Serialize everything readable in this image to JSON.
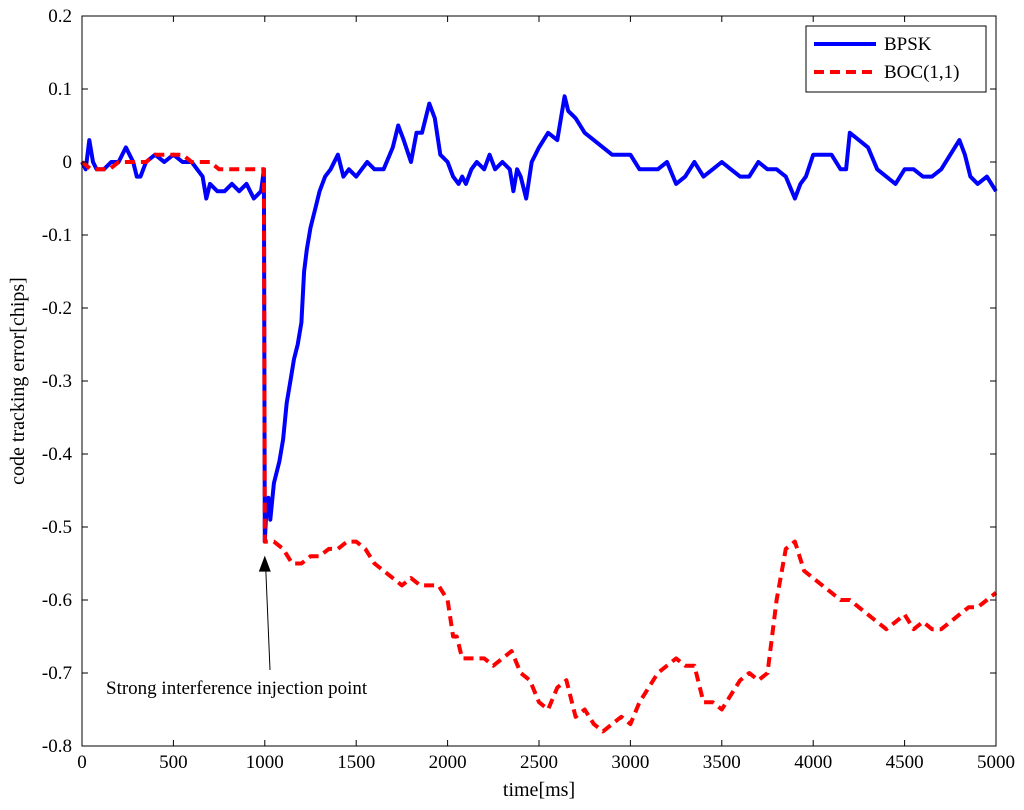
{
  "chart_data": {
    "type": "line",
    "xlabel": "time[ms]",
    "ylabel": "code tracking error[chips]",
    "xlim": [
      0,
      5000
    ],
    "ylim": [
      -0.8,
      0.2
    ],
    "x_ticks": [
      0,
      500,
      1000,
      1500,
      2000,
      2500,
      3000,
      3500,
      4000,
      4500,
      5000
    ],
    "x_tick_labels": [
      "0",
      "500",
      "1000",
      "1500",
      "2000",
      "2500",
      "3000",
      "3500",
      "4000",
      "4500",
      "5000"
    ],
    "y_ticks": [
      0.2,
      0.1,
      0,
      -0.1,
      -0.2,
      -0.3,
      -0.4,
      -0.5,
      -0.6,
      -0.7,
      -0.8
    ],
    "y_tick_labels": [
      "0.2",
      "0.1",
      "0",
      "-0.1",
      "-0.2",
      "-0.3",
      "-0.4",
      "-0.5",
      "-0.6",
      "-0.7",
      "-0.8"
    ],
    "grid": false,
    "legend_position": "top-right",
    "series": [
      {
        "name": "BPSK",
        "color": "#0000ff",
        "style": "solid",
        "points": [
          [
            0,
            0.0
          ],
          [
            20,
            -0.01
          ],
          [
            40,
            0.03
          ],
          [
            60,
            0.0
          ],
          [
            80,
            -0.01
          ],
          [
            120,
            -0.01
          ],
          [
            160,
            0.0
          ],
          [
            200,
            0.0
          ],
          [
            240,
            0.02
          ],
          [
            280,
            0.0
          ],
          [
            300,
            -0.02
          ],
          [
            320,
            -0.02
          ],
          [
            350,
            0.0
          ],
          [
            400,
            0.01
          ],
          [
            450,
            0.0
          ],
          [
            500,
            0.01
          ],
          [
            550,
            0.0
          ],
          [
            600,
            0.0
          ],
          [
            660,
            -0.02
          ],
          [
            680,
            -0.05
          ],
          [
            700,
            -0.03
          ],
          [
            740,
            -0.04
          ],
          [
            780,
            -0.04
          ],
          [
            820,
            -0.03
          ],
          [
            860,
            -0.04
          ],
          [
            900,
            -0.03
          ],
          [
            940,
            -0.05
          ],
          [
            980,
            -0.04
          ],
          [
            995,
            -0.01
          ],
          [
            1000,
            -0.52
          ],
          [
            1010,
            -0.47
          ],
          [
            1020,
            -0.46
          ],
          [
            1030,
            -0.49
          ],
          [
            1050,
            -0.44
          ],
          [
            1080,
            -0.41
          ],
          [
            1100,
            -0.38
          ],
          [
            1120,
            -0.33
          ],
          [
            1140,
            -0.3
          ],
          [
            1160,
            -0.27
          ],
          [
            1180,
            -0.25
          ],
          [
            1200,
            -0.22
          ],
          [
            1215,
            -0.15
          ],
          [
            1230,
            -0.12
          ],
          [
            1250,
            -0.09
          ],
          [
            1280,
            -0.06
          ],
          [
            1300,
            -0.04
          ],
          [
            1330,
            -0.02
          ],
          [
            1360,
            -0.01
          ],
          [
            1400,
            0.01
          ],
          [
            1430,
            -0.02
          ],
          [
            1460,
            -0.01
          ],
          [
            1500,
            -0.02
          ],
          [
            1530,
            -0.01
          ],
          [
            1560,
            0.0
          ],
          [
            1600,
            -0.01
          ],
          [
            1650,
            -0.01
          ],
          [
            1700,
            0.02
          ],
          [
            1730,
            0.05
          ],
          [
            1760,
            0.03
          ],
          [
            1800,
            0.0
          ],
          [
            1830,
            0.04
          ],
          [
            1860,
            0.04
          ],
          [
            1900,
            0.08
          ],
          [
            1930,
            0.06
          ],
          [
            1960,
            0.01
          ],
          [
            2000,
            0.0
          ],
          [
            2030,
            -0.02
          ],
          [
            2060,
            -0.03
          ],
          [
            2080,
            -0.02
          ],
          [
            2100,
            -0.03
          ],
          [
            2130,
            -0.01
          ],
          [
            2160,
            0.0
          ],
          [
            2200,
            -0.01
          ],
          [
            2230,
            0.01
          ],
          [
            2260,
            -0.01
          ],
          [
            2300,
            0.0
          ],
          [
            2340,
            -0.01
          ],
          [
            2360,
            -0.04
          ],
          [
            2380,
            -0.01
          ],
          [
            2400,
            -0.02
          ],
          [
            2430,
            -0.05
          ],
          [
            2460,
            0.0
          ],
          [
            2500,
            0.02
          ],
          [
            2550,
            0.04
          ],
          [
            2600,
            0.03
          ],
          [
            2640,
            0.09
          ],
          [
            2660,
            0.07
          ],
          [
            2700,
            0.06
          ],
          [
            2750,
            0.04
          ],
          [
            2800,
            0.03
          ],
          [
            2850,
            0.02
          ],
          [
            2900,
            0.01
          ],
          [
            2950,
            0.01
          ],
          [
            3000,
            0.01
          ],
          [
            3050,
            -0.01
          ],
          [
            3100,
            -0.01
          ],
          [
            3150,
            -0.01
          ],
          [
            3200,
            0.0
          ],
          [
            3250,
            -0.03
          ],
          [
            3300,
            -0.02
          ],
          [
            3350,
            0.0
          ],
          [
            3400,
            -0.02
          ],
          [
            3450,
            -0.01
          ],
          [
            3500,
            0.0
          ],
          [
            3550,
            -0.01
          ],
          [
            3600,
            -0.02
          ],
          [
            3650,
            -0.02
          ],
          [
            3700,
            0.0
          ],
          [
            3750,
            -0.01
          ],
          [
            3800,
            -0.01
          ],
          [
            3850,
            -0.02
          ],
          [
            3900,
            -0.05
          ],
          [
            3930,
            -0.03
          ],
          [
            3960,
            -0.02
          ],
          [
            4000,
            0.01
          ],
          [
            4050,
            0.01
          ],
          [
            4100,
            0.01
          ],
          [
            4150,
            -0.01
          ],
          [
            4180,
            -0.01
          ],
          [
            4200,
            0.04
          ],
          [
            4250,
            0.03
          ],
          [
            4300,
            0.02
          ],
          [
            4350,
            -0.01
          ],
          [
            4400,
            -0.02
          ],
          [
            4450,
            -0.03
          ],
          [
            4500,
            -0.01
          ],
          [
            4550,
            -0.01
          ],
          [
            4600,
            -0.02
          ],
          [
            4650,
            -0.02
          ],
          [
            4700,
            -0.01
          ],
          [
            4750,
            0.01
          ],
          [
            4800,
            0.03
          ],
          [
            4830,
            0.01
          ],
          [
            4860,
            -0.02
          ],
          [
            4900,
            -0.03
          ],
          [
            4950,
            -0.02
          ],
          [
            5000,
            -0.04
          ]
        ]
      },
      {
        "name": "BOC(1,1)",
        "color": "#ff0000",
        "style": "dashed",
        "points": [
          [
            0,
            0.0
          ],
          [
            50,
            -0.01
          ],
          [
            100,
            -0.01
          ],
          [
            150,
            -0.01
          ],
          [
            200,
            0.0
          ],
          [
            250,
            0.0
          ],
          [
            300,
            0.0
          ],
          [
            350,
            0.0
          ],
          [
            400,
            0.01
          ],
          [
            450,
            0.01
          ],
          [
            500,
            0.01
          ],
          [
            550,
            0.01
          ],
          [
            600,
            0.0
          ],
          [
            650,
            0.0
          ],
          [
            700,
            0.0
          ],
          [
            750,
            -0.01
          ],
          [
            800,
            -0.01
          ],
          [
            850,
            -0.01
          ],
          [
            900,
            -0.01
          ],
          [
            950,
            -0.01
          ],
          [
            995,
            -0.01
          ],
          [
            1000,
            -0.52
          ],
          [
            1050,
            -0.52
          ],
          [
            1100,
            -0.53
          ],
          [
            1150,
            -0.55
          ],
          [
            1200,
            -0.55
          ],
          [
            1250,
            -0.54
          ],
          [
            1300,
            -0.54
          ],
          [
            1350,
            -0.53
          ],
          [
            1400,
            -0.53
          ],
          [
            1450,
            -0.52
          ],
          [
            1500,
            -0.52
          ],
          [
            1550,
            -0.53
          ],
          [
            1600,
            -0.55
          ],
          [
            1650,
            -0.56
          ],
          [
            1700,
            -0.57
          ],
          [
            1750,
            -0.58
          ],
          [
            1800,
            -0.57
          ],
          [
            1850,
            -0.58
          ],
          [
            1900,
            -0.58
          ],
          [
            1950,
            -0.58
          ],
          [
            2000,
            -0.6
          ],
          [
            2030,
            -0.65
          ],
          [
            2050,
            -0.65
          ],
          [
            2080,
            -0.68
          ],
          [
            2150,
            -0.68
          ],
          [
            2200,
            -0.68
          ],
          [
            2250,
            -0.69
          ],
          [
            2300,
            -0.68
          ],
          [
            2350,
            -0.67
          ],
          [
            2400,
            -0.7
          ],
          [
            2450,
            -0.71
          ],
          [
            2500,
            -0.74
          ],
          [
            2550,
            -0.75
          ],
          [
            2600,
            -0.72
          ],
          [
            2650,
            -0.71
          ],
          [
            2700,
            -0.76
          ],
          [
            2750,
            -0.75
          ],
          [
            2800,
            -0.77
          ],
          [
            2850,
            -0.78
          ],
          [
            2900,
            -0.77
          ],
          [
            2950,
            -0.76
          ],
          [
            3000,
            -0.77
          ],
          [
            3050,
            -0.74
          ],
          [
            3100,
            -0.72
          ],
          [
            3150,
            -0.7
          ],
          [
            3200,
            -0.69
          ],
          [
            3250,
            -0.68
          ],
          [
            3300,
            -0.69
          ],
          [
            3350,
            -0.69
          ],
          [
            3400,
            -0.74
          ],
          [
            3450,
            -0.74
          ],
          [
            3500,
            -0.75
          ],
          [
            3550,
            -0.73
          ],
          [
            3600,
            -0.71
          ],
          [
            3650,
            -0.7
          ],
          [
            3700,
            -0.71
          ],
          [
            3750,
            -0.7
          ],
          [
            3800,
            -0.6
          ],
          [
            3850,
            -0.53
          ],
          [
            3900,
            -0.52
          ],
          [
            3950,
            -0.56
          ],
          [
            4000,
            -0.57
          ],
          [
            4050,
            -0.58
          ],
          [
            4100,
            -0.59
          ],
          [
            4150,
            -0.6
          ],
          [
            4200,
            -0.6
          ],
          [
            4250,
            -0.61
          ],
          [
            4300,
            -0.62
          ],
          [
            4350,
            -0.63
          ],
          [
            4400,
            -0.64
          ],
          [
            4450,
            -0.63
          ],
          [
            4500,
            -0.62
          ],
          [
            4550,
            -0.64
          ],
          [
            4600,
            -0.63
          ],
          [
            4650,
            -0.64
          ],
          [
            4700,
            -0.64
          ],
          [
            4750,
            -0.63
          ],
          [
            4800,
            -0.62
          ],
          [
            4850,
            -0.61
          ],
          [
            4900,
            -0.61
          ],
          [
            4950,
            -0.6
          ],
          [
            5000,
            -0.59
          ]
        ]
      }
    ],
    "annotations": [
      {
        "text": "Strong interference injection point",
        "x": 1000,
        "y": -0.52,
        "arrow": true
      }
    ]
  }
}
